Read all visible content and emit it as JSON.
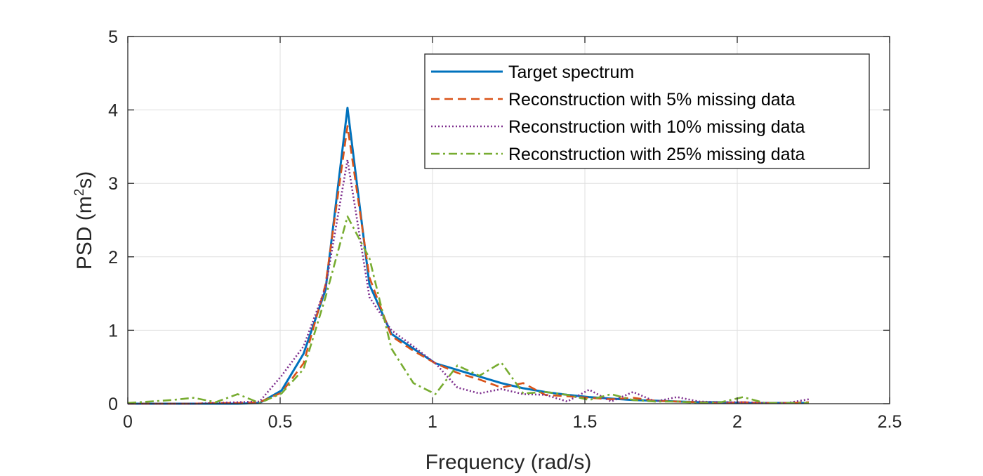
{
  "chart_data": {
    "type": "line",
    "xlabel": "Frequency (rad/s)",
    "ylabel_main": "PSD (m",
    "ylabel_sup": "2",
    "ylabel_end": "s)",
    "xlim": [
      0,
      2.5
    ],
    "ylim": [
      0,
      5
    ],
    "xticks": [
      0,
      0.5,
      1,
      1.5,
      2,
      2.5
    ],
    "yticks": [
      0,
      1,
      2,
      3,
      4,
      5
    ],
    "xtick_labels": [
      "0",
      "0.5",
      "1",
      "1.5",
      "2",
      "2.5"
    ],
    "ytick_labels": [
      "0",
      "1",
      "2",
      "3",
      "4",
      "5"
    ],
    "grid": true,
    "legend_position": "top-right",
    "series": [
      {
        "name": "Target spectrum",
        "color": "#0072BD",
        "style": "solid",
        "x": [
          0,
          0.0721,
          0.1442,
          0.2163,
          0.2884,
          0.3605,
          0.4326,
          0.5047,
          0.5768,
          0.6489,
          0.721,
          0.7931,
          0.8652,
          0.9373,
          1.0094,
          1.0815,
          1.1536,
          1.2257,
          1.2978,
          1.3699,
          1.442,
          1.5141,
          1.5862,
          1.6583,
          1.7304,
          1.8025,
          1.8746,
          1.9467,
          2.0188,
          2.0909,
          2.163,
          2.2351
        ],
        "y": [
          0,
          0,
          0,
          0,
          0,
          0,
          0.01,
          0.18,
          0.68,
          1.55,
          4.03,
          1.62,
          0.95,
          0.75,
          0.55,
          0.46,
          0.37,
          0.28,
          0.21,
          0.16,
          0.12,
          0.09,
          0.07,
          0.05,
          0.04,
          0.03,
          0.02,
          0.02,
          0.01,
          0.01,
          0.01,
          0.01
        ]
      },
      {
        "name": "Reconstruction with 5% missing data",
        "color": "#D95319",
        "style": "dashed",
        "x": [
          0,
          0.0721,
          0.1442,
          0.2163,
          0.2884,
          0.3605,
          0.4326,
          0.5047,
          0.5768,
          0.6489,
          0.721,
          0.7931,
          0.8652,
          0.9373,
          1.0094,
          1.0815,
          1.1536,
          1.2257,
          1.2978,
          1.3699,
          1.442,
          1.5141,
          1.5862,
          1.6583,
          1.7304,
          1.8025,
          1.8746,
          1.9467,
          2.0188,
          2.0909,
          2.163,
          2.2351
        ],
        "y": [
          0,
          0,
          0,
          0,
          0.01,
          0.01,
          0.02,
          0.15,
          0.55,
          1.62,
          3.78,
          1.72,
          0.92,
          0.72,
          0.55,
          0.42,
          0.33,
          0.22,
          0.28,
          0.12,
          0.1,
          0.08,
          0.06,
          0.08,
          0.04,
          0.03,
          0.02,
          0.01,
          0.02,
          0.01,
          0.01,
          0.02
        ]
      },
      {
        "name": "Reconstruction with 10% missing data",
        "color": "#7E2F8E",
        "style": "dotted",
        "x": [
          0,
          0.0721,
          0.1442,
          0.2163,
          0.2884,
          0.3605,
          0.4326,
          0.5047,
          0.5768,
          0.6489,
          0.721,
          0.7931,
          0.8652,
          0.9373,
          1.0094,
          1.0815,
          1.1536,
          1.2257,
          1.2978,
          1.3699,
          1.442,
          1.5141,
          1.5862,
          1.6583,
          1.7304,
          1.8025,
          1.8746,
          1.9467,
          2.0188,
          2.0909,
          2.163,
          2.2351
        ],
        "y": [
          0,
          0,
          0,
          0,
          0.01,
          0.02,
          0.03,
          0.38,
          0.78,
          1.58,
          3.32,
          1.45,
          1.0,
          0.78,
          0.55,
          0.22,
          0.14,
          0.2,
          0.13,
          0.12,
          0.03,
          0.19,
          0.03,
          0.16,
          0.03,
          0.09,
          0.03,
          0.02,
          0.02,
          0.01,
          0.01,
          0.06
        ]
      },
      {
        "name": "Reconstruction with 25% missing data",
        "color": "#77AC30",
        "style": "dashdot",
        "x": [
          0,
          0.0721,
          0.1442,
          0.2163,
          0.2884,
          0.3605,
          0.4326,
          0.5047,
          0.5768,
          0.6489,
          0.721,
          0.7931,
          0.8652,
          0.9373,
          1.0094,
          1.0815,
          1.1536,
          1.2257,
          1.2978,
          1.3699,
          1.442,
          1.5141,
          1.5862,
          1.6583,
          1.7304,
          1.8025,
          1.8746,
          1.9467,
          2.0188,
          2.0909,
          2.163,
          2.2351
        ],
        "y": [
          0.01,
          0.03,
          0.05,
          0.08,
          0.02,
          0.13,
          0.01,
          0.14,
          0.47,
          1.45,
          2.55,
          1.98,
          0.75,
          0.28,
          0.13,
          0.52,
          0.38,
          0.56,
          0.14,
          0.16,
          0.12,
          0.05,
          0.13,
          0.05,
          0.03,
          0.03,
          0.01,
          0.02,
          0.09,
          0.01,
          0.01,
          0.01
        ]
      }
    ]
  }
}
